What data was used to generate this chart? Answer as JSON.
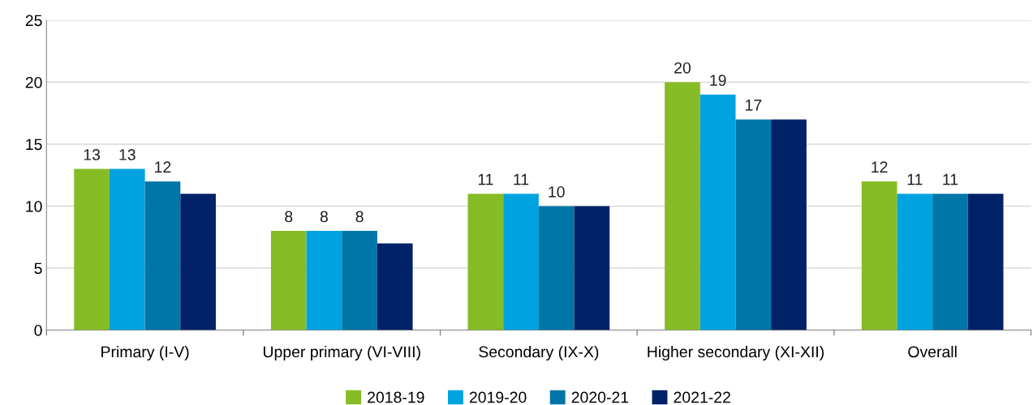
{
  "chart_data": {
    "type": "bar",
    "categories": [
      "Primary (I-V)",
      "Upper primary (VI-VIII)",
      "Secondary (IX-X)",
      "Higher secondary (XI-XII)",
      "Overall"
    ],
    "series": [
      {
        "name": "2018-19",
        "color": "#86bc25",
        "values": [
          13,
          8,
          11,
          20,
          12
        ],
        "value_labels": [
          "13",
          "8",
          "11",
          "20",
          "12"
        ]
      },
      {
        "name": "2019-20",
        "color": "#00a3e0",
        "values": [
          13,
          8,
          11,
          19,
          11
        ],
        "value_labels": [
          "13",
          "8",
          "11",
          "19",
          "11"
        ]
      },
      {
        "name": "2020-21",
        "color": "#0076a8",
        "values": [
          12,
          8,
          10,
          17,
          11
        ],
        "value_labels": [
          "12",
          "8",
          "10",
          "17",
          "11"
        ]
      },
      {
        "name": "2021-22",
        "color": "#012169",
        "values": [
          11,
          7,
          10,
          17,
          11
        ],
        "value_labels": [
          null,
          null,
          null,
          null,
          null
        ]
      }
    ],
    "ylim": [
      0,
      25
    ],
    "yticks": [
      0,
      5,
      10,
      15,
      20,
      25
    ],
    "grid": "y",
    "legend": "bottom"
  }
}
